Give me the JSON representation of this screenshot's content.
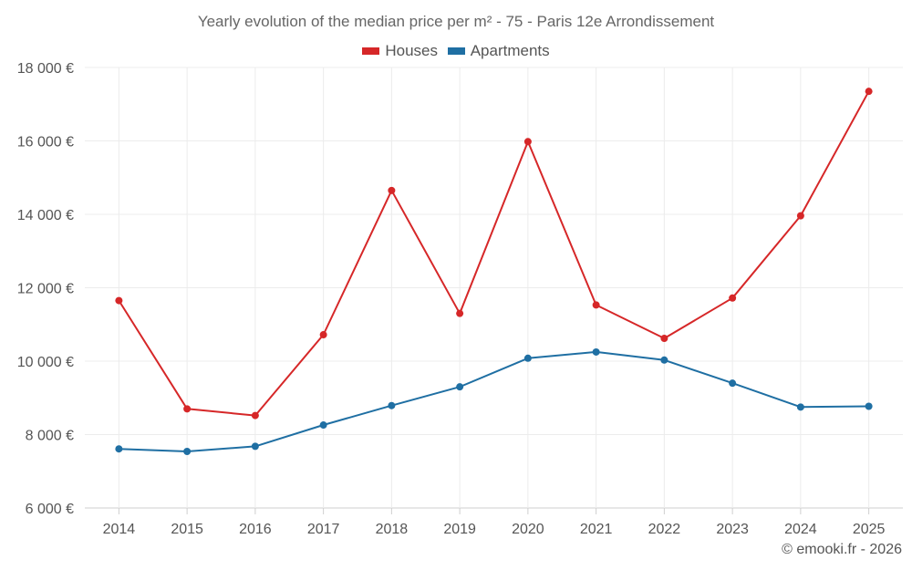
{
  "chart_data": {
    "type": "line",
    "title": "Yearly evolution of the median price per m² - 75 - Paris 12e Arrondissement",
    "categories": [
      "2014",
      "2015",
      "2016",
      "2017",
      "2018",
      "2019",
      "2020",
      "2021",
      "2022",
      "2023",
      "2024",
      "2025"
    ],
    "series": [
      {
        "name": "Houses",
        "color": "#d62728",
        "values": [
          11650,
          8700,
          8520,
          10720,
          14650,
          11300,
          15980,
          11530,
          10620,
          11720,
          13960,
          17350
        ]
      },
      {
        "name": "Apartments",
        "color": "#1f6fa3",
        "values": [
          7610,
          7540,
          7680,
          8260,
          8790,
          9300,
          10080,
          10250,
          10030,
          9400,
          8750,
          8770
        ]
      }
    ],
    "ylim": [
      6000,
      18000
    ],
    "yticks": [
      6000,
      8000,
      10000,
      12000,
      14000,
      16000,
      18000
    ],
    "ytick_labels": [
      "6 000 €",
      "8 000 €",
      "10 000 €",
      "12 000 €",
      "14 000 €",
      "16 000 €",
      "18 000 €"
    ],
    "xlabel": "",
    "ylabel": "",
    "grid": true,
    "legend_position": "top-center"
  },
  "copyright": "© emooki.fr - 2026"
}
